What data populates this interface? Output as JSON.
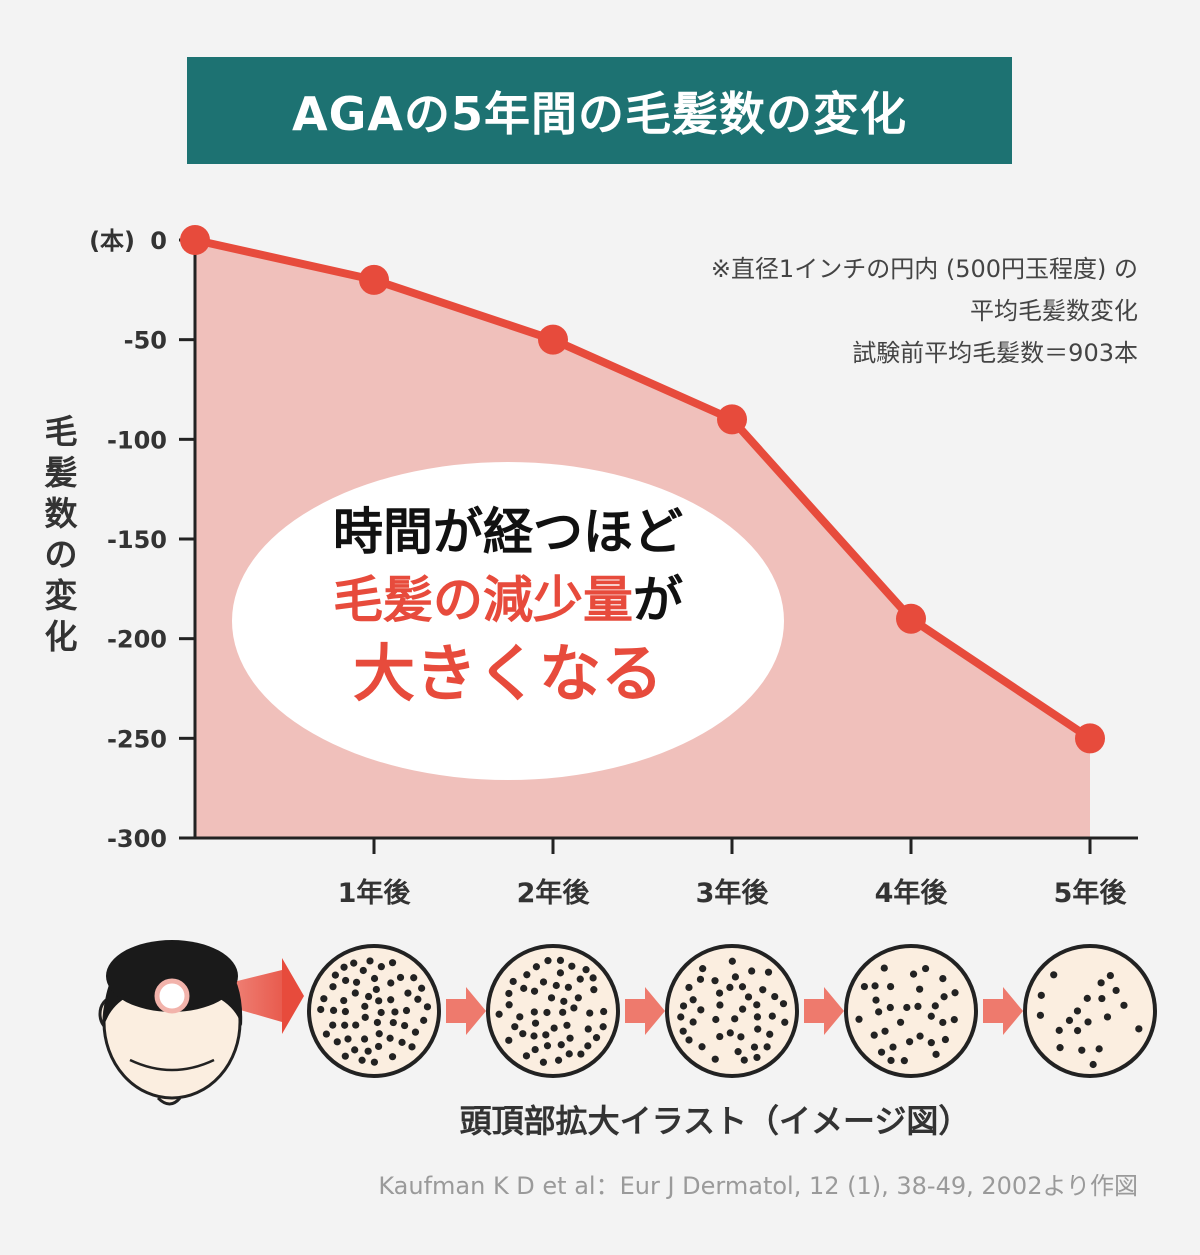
{
  "title": "AGAの5年間の毛髪数の変化",
  "ylabel_chars": [
    "毛",
    "髪",
    "数",
    "の",
    "変",
    "化"
  ],
  "note_lines": [
    "※直径1インチの円内 (500円玉程度) の",
    "平均毛髪数変化",
    "試験前平均毛髪数＝903本"
  ],
  "callout": {
    "line1": "時間が経つほど",
    "line2_red": "毛髪の減少量",
    "line2_black": "が",
    "line3": "大きくなる"
  },
  "caption": "頭頂部拡大イラスト（イメージ図）",
  "source": "Kaufman K D et al：Eur J Dermatol, 12 (1), 38-49, 2002より作図",
  "colors": {
    "banner": "#1d7272",
    "line": "#e74b3c",
    "area_fill": "#f0c0bb",
    "scalp": "#fbeee0"
  },
  "chart_data": {
    "type": "area",
    "x": [
      "",
      "1年後",
      "2年後",
      "3年後",
      "4年後",
      "5年後"
    ],
    "values": [
      0,
      -20,
      -50,
      -90,
      -190,
      -250
    ],
    "ylabel": "毛髪数の変化",
    "yunit": "(本)",
    "ylim": [
      -300,
      0
    ],
    "yticks": [
      0,
      -50,
      -100,
      -150,
      -200,
      -250,
      -300
    ],
    "grid": false
  },
  "hair_dot_counts": [
    56,
    50,
    42,
    32,
    20
  ]
}
